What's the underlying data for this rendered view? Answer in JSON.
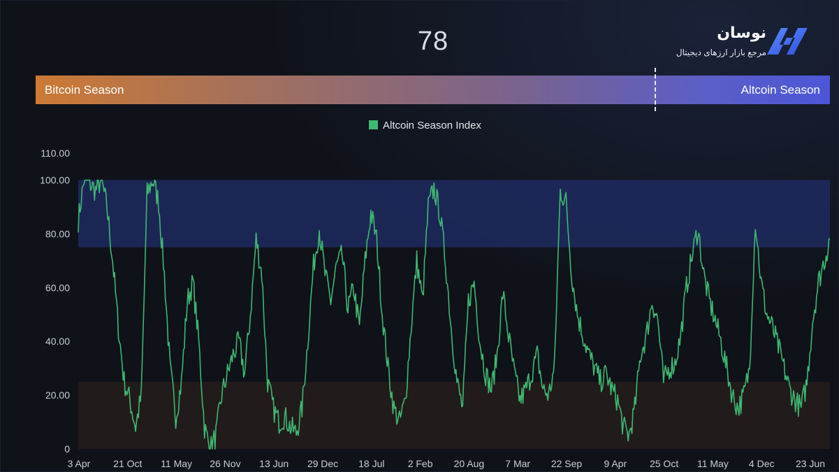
{
  "header": {
    "index_value": "78",
    "brand_name": "نوسان",
    "brand_tagline": "مرجع بازار ارزهای دیجیتال"
  },
  "season_bar": {
    "left_label": "Bitcoin Season",
    "right_label": "Altcoin Season",
    "marker_value": 78
  },
  "colors": {
    "line": "#3fb871",
    "altcoin_zone": "#1f2a60",
    "bitcoin_zone": "#2a1f1c",
    "bar_left": "#cc7a34",
    "bar_right": "#4c56d8"
  },
  "chart_data": {
    "type": "line",
    "title": "",
    "xlabel": "",
    "ylabel": "",
    "ylim": [
      0,
      110
    ],
    "yticks": [
      0,
      20,
      40,
      60,
      80,
      100,
      110
    ],
    "ytick_labels": [
      "0",
      "20.00",
      "40.00",
      "60.00",
      "80.00",
      "100.00",
      "110.00"
    ],
    "x_tick_labels": [
      "3 Apr",
      "21 Oct",
      "11 May",
      "26 Nov",
      "13 Jun",
      "29 Dec",
      "18 Jul",
      "2 Feb",
      "20 Aug",
      "7 Mar",
      "22 Sep",
      "9 Apr",
      "25 Oct",
      "11 May",
      "4 Dec",
      "23 Jun"
    ],
    "grid": false,
    "legend": "top-center",
    "bands": [
      {
        "name": "Altcoin Season",
        "from": 75,
        "to": 100
      },
      {
        "name": "Bitcoin Season",
        "from": 0,
        "to": 25
      }
    ],
    "series": [
      {
        "name": "Altcoin Season Index",
        "values": [
          85,
          100,
          99,
          96,
          100,
          90,
          70,
          45,
          25,
          18,
          8,
          20,
          95,
          100,
          92,
          65,
          30,
          12,
          25,
          55,
          62,
          40,
          8,
          0,
          5,
          20,
          28,
          35,
          40,
          28,
          50,
          78,
          65,
          25,
          15,
          10,
          12,
          8,
          6,
          15,
          40,
          68,
          82,
          65,
          55,
          68,
          72,
          52,
          60,
          45,
          70,
          88,
          78,
          50,
          30,
          15,
          10,
          18,
          45,
          70,
          55,
          90,
          97,
          88,
          70,
          45,
          25,
          15,
          55,
          62,
          40,
          28,
          22,
          35,
          58,
          42,
          28,
          18,
          22,
          28,
          35,
          22,
          20,
          30,
          96,
          92,
          65,
          50,
          42,
          35,
          30,
          25,
          28,
          22,
          18,
          8,
          5,
          15,
          35,
          42,
          55,
          48,
          25,
          30,
          32,
          42,
          60,
          72,
          82,
          65,
          55,
          48,
          40,
          30,
          20,
          15,
          20,
          30,
          85,
          62,
          50,
          45,
          38,
          30,
          22,
          18,
          15,
          25,
          48,
          62,
          70,
          78
        ]
      }
    ]
  }
}
